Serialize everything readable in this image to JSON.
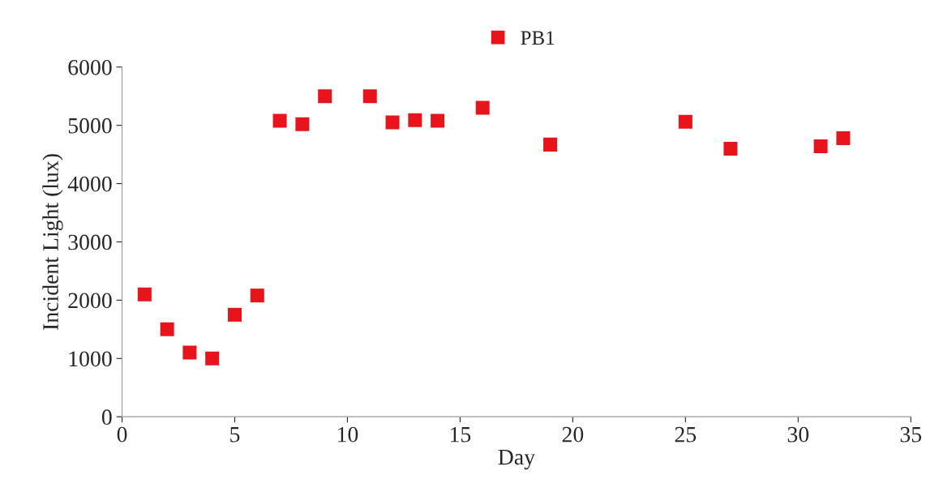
{
  "chart_data": {
    "type": "scatter",
    "xlabel": "Day",
    "ylabel": "Incident Light (lux)",
    "x": [
      1,
      2,
      3,
      4,
      5,
      6,
      7,
      8,
      9,
      11,
      12,
      13,
      14,
      16,
      19,
      25,
      27,
      31,
      32
    ],
    "series": [
      {
        "name": "PB1",
        "color": "#e8141b",
        "values": [
          2100,
          1500,
          1100,
          1000,
          1750,
          2080,
          5080,
          5020,
          5500,
          5500,
          5050,
          5090,
          5080,
          5300,
          4670,
          5060,
          4600,
          4640,
          4780
        ]
      }
    ],
    "xlim": [
      0,
      35
    ],
    "xticks": [
      0,
      5,
      10,
      15,
      20,
      25,
      30,
      35
    ],
    "ylim": [
      0,
      6000
    ],
    "yticks": [
      0,
      1000,
      2000,
      3000,
      4000,
      5000,
      6000
    ],
    "marker": "square",
    "legend": "top",
    "grid": false
  }
}
